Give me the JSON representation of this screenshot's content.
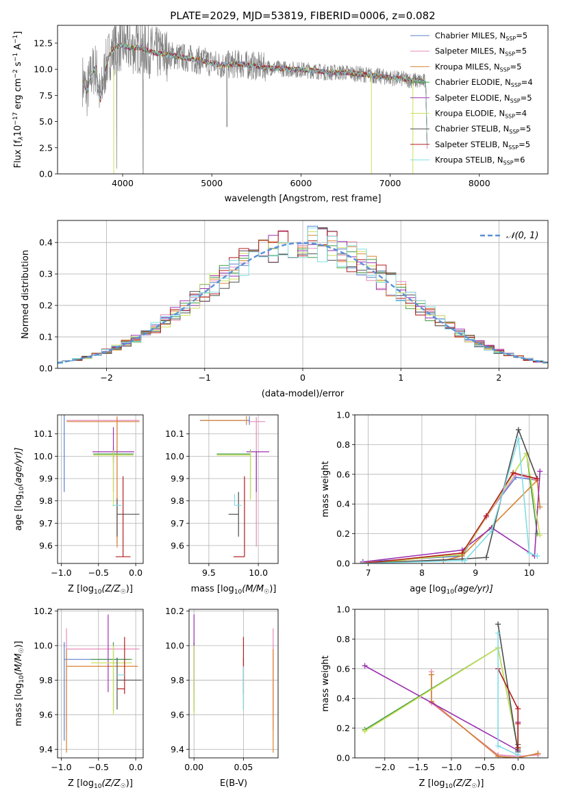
{
  "palette": {
    "c_miles": "#5b7fcf",
    "s_miles": "#e68ab8",
    "k_miles": "#d9812e",
    "c_elodie": "#3f9a3f",
    "s_elodie": "#9a2fb0",
    "k_elodie": "#c9e05a",
    "c_stelib": "#4d4d4d",
    "s_stelib": "#b31b1b",
    "k_stelib": "#7fdde6",
    "obs": "#808080",
    "gauss": "#5a8fd6"
  },
  "chart_data": [
    {
      "id": "spectrum",
      "type": "line",
      "title": "PLATE=2029, MJD=53819, FIBERID=0006, z=0.082",
      "xlabel": "wavelength [Angstrom, rest frame]",
      "ylabel": "Flux [f",
      "ylabel_sub": "λ",
      "ylabel_rest": "10",
      "ylabel_exp1": "−17",
      "ylabel_rest2": " erg cm",
      "ylabel_exp2": "−2",
      "ylabel_rest3": " s",
      "ylabel_exp3": "−1",
      "ylabel_rest4": " A",
      "ylabel_exp4": "−1",
      "ylabel_end": "]",
      "xlim": [
        3270,
        8770
      ],
      "ylim": [
        0,
        14.2
      ],
      "xticks": [
        "4000",
        "5000",
        "6000",
        "7000",
        "8000"
      ],
      "xtick_values": [
        4000,
        5000,
        6000,
        7000,
        8000
      ],
      "yticks": [
        "0.0",
        "2.5",
        "5.0",
        "7.5",
        "10.0",
        "12.5"
      ],
      "ytick_values": [
        0,
        2.5,
        5,
        7.5,
        10,
        12.5
      ],
      "grid": false,
      "legend_position": "top-right",
      "legend": [
        {
          "base": "Chabrier MILES, N",
          "sub": "SSP",
          "tail": "=5",
          "color_key": "c_miles"
        },
        {
          "base": "Salpeter MILES, N",
          "sub": "SSP",
          "tail": "=5",
          "color_key": "s_miles"
        },
        {
          "base": "Kroupa MILES, N",
          "sub": "SSP",
          "tail": "=5",
          "color_key": "k_miles"
        },
        {
          "base": "Chabrier ELODIE, N",
          "sub": "SSP",
          "tail": "=4",
          "color_key": "c_elodie"
        },
        {
          "base": "Salpeter ELODIE, N",
          "sub": "SSP",
          "tail": "=5",
          "color_key": "s_elodie"
        },
        {
          "base": "Kroupa ELODIE, N",
          "sub": "SSP",
          "tail": "=4",
          "color_key": "k_elodie"
        },
        {
          "base": "Chabrier STELIB, N",
          "sub": "SSP",
          "tail": "=5",
          "color_key": "c_stelib"
        },
        {
          "base": "Salpeter STELIB, N",
          "sub": "SSP",
          "tail": "=5",
          "color_key": "s_stelib"
        },
        {
          "base": "Kroupa STELIB, N",
          "sub": "SSP",
          "tail": "=6",
          "color_key": "k_stelib"
        }
      ],
      "model_continuum": {
        "x": [
          3550,
          3600,
          3650,
          3700,
          3750,
          3800,
          3850,
          3900,
          3950,
          4000,
          4100,
          4200,
          4300,
          4400,
          4500,
          4700,
          4900,
          5100,
          5300,
          5500,
          5700,
          5900,
          6100,
          6300,
          6500,
          6700,
          6900,
          7100,
          7300,
          7400,
          7420
        ],
        "y": [
          9.0,
          7.8,
          9.6,
          10.2,
          7.0,
          9.9,
          11.4,
          11.9,
          12.2,
          12.3,
          12.0,
          12.1,
          11.7,
          11.5,
          11.4,
          11.1,
          10.8,
          10.4,
          10.5,
          10.3,
          10.1,
          10.0,
          9.9,
          9.7,
          9.7,
          9.5,
          9.3,
          9.1,
          8.9,
          8.8,
          0.0
        ]
      }
    },
    {
      "id": "residuals",
      "type": "step",
      "xlabel": "(data-model)/error",
      "ylabel": "Normed distribution",
      "xlim": [
        -2.5,
        2.5
      ],
      "ylim": [
        0,
        0.47
      ],
      "xticks": [
        "−2",
        "−1",
        "0",
        "1",
        "2"
      ],
      "xtick_values": [
        -2,
        -1,
        0,
        1,
        2
      ],
      "yticks": [
        "0.0",
        "0.1",
        "0.2",
        "0.3",
        "0.4"
      ],
      "ytick_values": [
        0,
        0.1,
        0.2,
        0.3,
        0.4
      ],
      "grid": true,
      "legend_position": "top-right",
      "legend": [
        {
          "label": "𝒩(0, 1)",
          "color_key": "gauss"
        }
      ],
      "bin_width": 0.1
    },
    {
      "id": "age_vs_Z",
      "type": "errorbar",
      "xlabel": "Z [log",
      "xlabel_sub": "10",
      "xlabel_tail": "(Z/Z",
      "xlabel_sub2": "☉",
      "xlabel_end": ")]",
      "ylabel": "age  [log",
      "ylabel_sub": "10",
      "ylabel_tail": "(age/yr)]",
      "xlim": [
        -1.05,
        0.1
      ],
      "ylim": [
        9.52,
        10.185
      ],
      "xticks": [
        "−1.0",
        "−0.5",
        "0.0"
      ],
      "xtick_values": [
        -1.0,
        -0.5,
        0.0
      ],
      "yticks": [
        "9.6",
        "9.7",
        "9.8",
        "9.9",
        "10.0",
        "10.1"
      ],
      "ytick_values": [
        9.6,
        9.7,
        9.8,
        9.9,
        10.0,
        10.1
      ],
      "grid": true,
      "points": [
        {
          "key": "c_miles",
          "x": -0.96,
          "xl": 0.0,
          "xr": 0.0,
          "y": 10.16,
          "yl": 0.32,
          "yu": 0.03
        },
        {
          "key": "s_miles",
          "x": -0.25,
          "xl": 0.68,
          "xr": 0.3,
          "y": 10.16,
          "yl": 0.57,
          "yu": 0.02
        },
        {
          "key": "k_miles",
          "x": -0.25,
          "xl": 0.68,
          "xr": 0.3,
          "y": 10.155,
          "yl": 0.56,
          "yu": 0.02
        },
        {
          "key": "c_elodie",
          "x": -0.3,
          "xl": 0.27,
          "xr": 0.27,
          "y": 10.01,
          "yl": 0.04,
          "yu": 0.03
        },
        {
          "key": "s_elodie",
          "x": -0.3,
          "xl": 0.28,
          "xr": 0.28,
          "y": 10.02,
          "yl": 0.18,
          "yu": 0.11
        },
        {
          "key": "k_elodie",
          "x": -0.3,
          "xl": 0.27,
          "xr": 0.27,
          "y": 10.005,
          "yl": 0.23,
          "yu": 0.02
        },
        {
          "key": "c_stelib",
          "x": -0.25,
          "xl": 0.0,
          "xr": 0.3,
          "y": 9.74,
          "yl": 0.1,
          "yu": 0.07
        },
        {
          "key": "s_stelib",
          "x": -0.17,
          "xl": 0.1,
          "xr": 0.1,
          "y": 9.55,
          "yl": 0.0,
          "yu": 0.36
        },
        {
          "key": "k_stelib",
          "x": -0.25,
          "xl": 0.06,
          "xr": 0.06,
          "y": 9.78,
          "yl": 0.0,
          "yu": 0.0
        }
      ]
    },
    {
      "id": "age_vs_mass",
      "type": "errorbar",
      "xlabel": "mass [log",
      "xlabel_sub": "10",
      "xlabel_tail": "(M/M",
      "xlabel_sub2": "☉",
      "xlabel_end": ")]",
      "xlim": [
        9.3,
        10.2
      ],
      "ylim": [
        9.52,
        10.185
      ],
      "xticks": [
        "9.5",
        "10.0"
      ],
      "xtick_values": [
        9.5,
        10.0
      ],
      "yticks": [
        "9.6",
        "9.7",
        "9.8",
        "9.9",
        "10.0",
        "10.1"
      ],
      "ytick_values": [
        9.6,
        9.7,
        9.8,
        9.9,
        10.0,
        10.1
      ],
      "grid": true,
      "points": [
        {
          "key": "c_miles",
          "x": 9.91,
          "xl": 0.5,
          "xr": 0.0,
          "y": 10.16,
          "yl": 0.02,
          "yu": 0.02
        },
        {
          "key": "s_miles",
          "x": 9.98,
          "xl": 0.08,
          "xr": 0.09,
          "y": 10.155,
          "yl": 0.56,
          "yu": 0.02
        },
        {
          "key": "k_miles",
          "x": 9.88,
          "xl": 0.46,
          "xr": 0.0,
          "y": 10.16,
          "yl": 0.02,
          "yu": 0.02
        },
        {
          "key": "c_elodie",
          "x": 9.92,
          "xl": 0.34,
          "xr": 0.0,
          "y": 10.01,
          "yl": 0.2,
          "yu": 0.02
        },
        {
          "key": "s_elodie",
          "x": 9.98,
          "xl": 0.1,
          "xr": 0.13,
          "y": 10.02,
          "yl": 0.18,
          "yu": 0.0
        },
        {
          "key": "k_elodie",
          "x": 9.92,
          "xl": 0.34,
          "xr": 0.0,
          "y": 10.005,
          "yl": 0.2,
          "yu": 0.02
        },
        {
          "key": "c_stelib",
          "x": 9.8,
          "xl": 0.1,
          "xr": 0.0,
          "y": 9.74,
          "yl": 0.1,
          "yu": 0.1
        },
        {
          "key": "s_stelib",
          "x": 9.86,
          "xl": 0.11,
          "xr": 0.0,
          "y": 9.55,
          "yl": 0.0,
          "yu": 0.36
        },
        {
          "key": "k_stelib",
          "x": 9.76,
          "xl": 0.0,
          "xr": 0.07,
          "y": 9.78,
          "yl": 0.0,
          "yu": 0.05
        }
      ]
    },
    {
      "id": "mw_vs_age",
      "type": "line",
      "xlabel": "age  [log",
      "xlabel_sub": "10",
      "xlabel_tail": "(age/yr)]",
      "ylabel": "mass weight",
      "xlim": [
        6.75,
        10.35
      ],
      "ylim": [
        0,
        1
      ],
      "xticks": [
        "7",
        "8",
        "9",
        "10"
      ],
      "xtick_values": [
        7,
        8,
        9,
        10
      ],
      "yticks": [
        "0.0",
        "0.2",
        "0.4",
        "0.6",
        "0.8",
        "1.0"
      ],
      "ytick_values": [
        0,
        0.2,
        0.4,
        0.6,
        0.8,
        1.0
      ],
      "grid": true,
      "series": [
        {
          "key": "c_miles",
          "x": [
            6.9,
            8.75,
            9.2,
            9.75,
            10.15
          ],
          "y": [
            0.01,
            0.05,
            0.32,
            0.58,
            0.56
          ]
        },
        {
          "key": "s_miles",
          "x": [
            6.9,
            8.75,
            9.2,
            9.75,
            10.15
          ],
          "y": [
            0.0,
            0.06,
            0.31,
            0.6,
            0.56
          ]
        },
        {
          "key": "k_miles",
          "x": [
            6.9,
            8.4,
            8.75,
            10.15,
            10.2
          ],
          "y": [
            0.01,
            0.02,
            0.05,
            0.56,
            0.38
          ]
        },
        {
          "key": "c_elodie",
          "x": [
            6.9,
            8.75,
            9.95,
            10.15
          ],
          "y": [
            0.0,
            0.06,
            0.74,
            0.2
          ]
        },
        {
          "key": "s_elodie",
          "x": [
            6.9,
            8.75,
            9.3,
            10.1,
            10.2
          ],
          "y": [
            0.01,
            0.09,
            0.24,
            0.05,
            0.62
          ]
        },
        {
          "key": "k_elodie",
          "x": [
            6.9,
            8.75,
            9.95,
            10.2
          ],
          "y": [
            0.0,
            0.06,
            0.74,
            0.19
          ]
        },
        {
          "key": "c_stelib",
          "x": [
            6.9,
            8.75,
            9.2,
            9.8,
            10.15
          ],
          "y": [
            0.0,
            0.03,
            0.04,
            0.9,
            0.57
          ]
        },
        {
          "key": "s_stelib",
          "x": [
            6.9,
            8.75,
            9.2,
            9.7,
            10.15
          ],
          "y": [
            0.0,
            0.07,
            0.32,
            0.61,
            0.57
          ]
        },
        {
          "key": "k_stelib",
          "x": [
            6.9,
            8.8,
            9.3,
            9.8,
            10.0,
            10.15
          ],
          "y": [
            0.0,
            0.02,
            0.22,
            0.84,
            0.07,
            0.05
          ]
        }
      ]
    },
    {
      "id": "mass_vs_Z",
      "type": "errorbar",
      "xlabel": "Z [log",
      "xlabel_sub": "10",
      "xlabel_tail": "(Z/Z",
      "xlabel_sub2": "☉",
      "xlabel_end": ")]",
      "ylabel": "mass [log",
      "ylabel_sub": "10",
      "ylabel_tail": "(M/M",
      "ylabel_sub2": "☉",
      "ylabel_end": ")]",
      "xlim": [
        -1.05,
        0.1
      ],
      "ylim": [
        9.35,
        10.21
      ],
      "xticks": [
        "−1.0",
        "−0.5",
        "0.0"
      ],
      "xtick_values": [
        -1.0,
        -0.5,
        0.0
      ],
      "yticks": [
        "9.4",
        "9.6",
        "9.8",
        "10.0",
        "10.2"
      ],
      "ytick_values": [
        9.4,
        9.6,
        9.8,
        10.0,
        10.2
      ],
      "grid": true,
      "points": [
        {
          "key": "c_miles",
          "x": -0.96,
          "xl": 0.0,
          "xr": 0.88,
          "y": 9.92,
          "yl": 0.47,
          "yu": 0.1
        },
        {
          "key": "s_miles",
          "x": -0.93,
          "xl": 0.0,
          "xr": 0.98,
          "y": 9.98,
          "yl": 0.47,
          "yu": 0.12
        },
        {
          "key": "k_miles",
          "x": -0.93,
          "xl": 0.0,
          "xr": 0.96,
          "y": 9.88,
          "yl": 0.5,
          "yu": 0.1
        },
        {
          "key": "c_elodie",
          "x": -0.3,
          "xl": 0.3,
          "xr": 0.25,
          "y": 9.92,
          "yl": 0.3,
          "yu": 0.1
        },
        {
          "key": "s_elodie",
          "x": -0.37,
          "xl": 0.0,
          "xr": 0.0,
          "y": 9.98,
          "yl": 0.25,
          "yu": 0.2
        },
        {
          "key": "k_elodie",
          "x": -0.3,
          "xl": 0.3,
          "xr": 0.25,
          "y": 9.9,
          "yl": 0.3,
          "yu": 0.1
        },
        {
          "key": "c_stelib",
          "x": -0.25,
          "xl": 0.0,
          "xr": 0.33,
          "y": 9.8,
          "yl": 0.17,
          "yu": 0.13
        },
        {
          "key": "s_stelib",
          "x": -0.15,
          "xl": 0.1,
          "xr": 0.0,
          "y": 9.75,
          "yl": 0.03,
          "yu": 0.3
        },
        {
          "key": "k_stelib",
          "x": -0.2,
          "xl": 0.05,
          "xr": 0.05,
          "y": 9.83,
          "yl": 0.0,
          "yu": 0.0
        }
      ]
    },
    {
      "id": "mass_vs_EBV",
      "type": "errorbar",
      "xlabel": "E(B-V)",
      "xlim": [
        -0.005,
        0.085
      ],
      "ylim": [
        9.35,
        10.21
      ],
      "xticks": [
        "0.00",
        "0.05"
      ],
      "xtick_values": [
        0.0,
        0.05
      ],
      "yticks": [
        "9.4",
        "9.6",
        "9.8",
        "10.0",
        "10.2"
      ],
      "ytick_values": [
        9.4,
        9.6,
        9.8,
        10.0,
        10.2
      ],
      "grid": true,
      "points": [
        {
          "key": "c_miles",
          "x": 0.0,
          "xl": 0,
          "xr": 0,
          "y": 9.92,
          "yl": 0.3,
          "yu": 0.1
        },
        {
          "key": "s_miles",
          "x": 0.08,
          "xl": 0,
          "xr": 0,
          "y": 9.98,
          "yl": 0.47,
          "yu": 0.12
        },
        {
          "key": "k_miles",
          "x": 0.08,
          "xl": 0,
          "xr": 0,
          "y": 9.88,
          "yl": 0.5,
          "yu": 0.1
        },
        {
          "key": "c_elodie",
          "x": 0.0,
          "xl": 0,
          "xr": 0,
          "y": 9.92,
          "yl": 0.3,
          "yu": 0.1
        },
        {
          "key": "s_elodie",
          "x": 0.0,
          "xl": 0,
          "xr": 0,
          "y": 9.98,
          "yl": 0.25,
          "yu": 0.2
        },
        {
          "key": "k_elodie",
          "x": 0.0,
          "xl": 0,
          "xr": 0,
          "y": 9.9,
          "yl": 0.3,
          "yu": 0.1
        },
        {
          "key": "c_stelib",
          "x": 0.05,
          "xl": 0,
          "xr": 0,
          "y": 9.8,
          "yl": 0.17,
          "yu": 0.13
        },
        {
          "key": "s_stelib",
          "x": 0.05,
          "xl": 0,
          "xr": 0,
          "y": 9.75,
          "yl": 0.03,
          "yu": 0.3
        },
        {
          "key": "k_stelib",
          "x": 0.05,
          "xl": 0,
          "xr": 0,
          "y": 9.83,
          "yl": 0.2,
          "yu": 0.05
        }
      ]
    },
    {
      "id": "mw_vs_Z",
      "type": "line",
      "xlabel": "Z [log",
      "xlabel_sub": "10",
      "xlabel_tail": "(Z/Z",
      "xlabel_sub2": "☉",
      "xlabel_end": ")]",
      "ylabel": "mass weight",
      "xlim": [
        -2.45,
        0.45
      ],
      "ylim": [
        0,
        1
      ],
      "xticks": [
        "−2.0",
        "−1.5",
        "−1.0",
        "−0.5",
        "0.0"
      ],
      "xtick_values": [
        -2.0,
        -1.5,
        -1.0,
        -0.5,
        0.0
      ],
      "yticks": [
        "0.0",
        "0.2",
        "0.4",
        "0.6",
        "0.8",
        "1.0"
      ],
      "ytick_values": [
        0,
        0.2,
        0.4,
        0.6,
        0.8,
        1.0
      ],
      "grid": true,
      "series": [
        {
          "key": "c_miles",
          "x": [
            -1.3,
            -1.3,
            -0.3,
            0.0,
            0.3
          ],
          "y": [
            0.56,
            0.38,
            0.01,
            0.0,
            0.03
          ]
        },
        {
          "key": "s_miles",
          "x": [
            -1.3,
            -1.3,
            -0.3,
            0.0,
            0.3
          ],
          "y": [
            0.58,
            0.37,
            0.02,
            0.01,
            0.02
          ]
        },
        {
          "key": "k_miles",
          "x": [
            -1.3,
            -1.3,
            -0.3,
            0.0,
            0.3
          ],
          "y": [
            0.56,
            0.38,
            0.01,
            0.0,
            0.03
          ]
        },
        {
          "key": "c_elodie",
          "x": [
            -2.3,
            -0.3,
            0.0
          ],
          "y": [
            0.19,
            0.74,
            0.06
          ]
        },
        {
          "key": "s_elodie",
          "x": [
            -2.3,
            0.0,
            0.0
          ],
          "y": [
            0.62,
            0.05,
            0.24
          ]
        },
        {
          "key": "k_elodie",
          "x": [
            -2.3,
            -0.3,
            0.0
          ],
          "y": [
            0.18,
            0.74,
            0.07
          ]
        },
        {
          "key": "c_stelib",
          "x": [
            -0.3,
            0.0,
            0.0
          ],
          "y": [
            0.9,
            0.04,
            0.09
          ]
        },
        {
          "key": "s_stelib",
          "x": [
            -0.3,
            0.0,
            0.0,
            0.0
          ],
          "y": [
            0.6,
            0.33,
            0.23,
            0.07
          ]
        },
        {
          "key": "k_stelib",
          "x": [
            -0.3,
            -0.3,
            0.0
          ],
          "y": [
            0.84,
            0.08,
            0.02
          ]
        }
      ]
    }
  ]
}
